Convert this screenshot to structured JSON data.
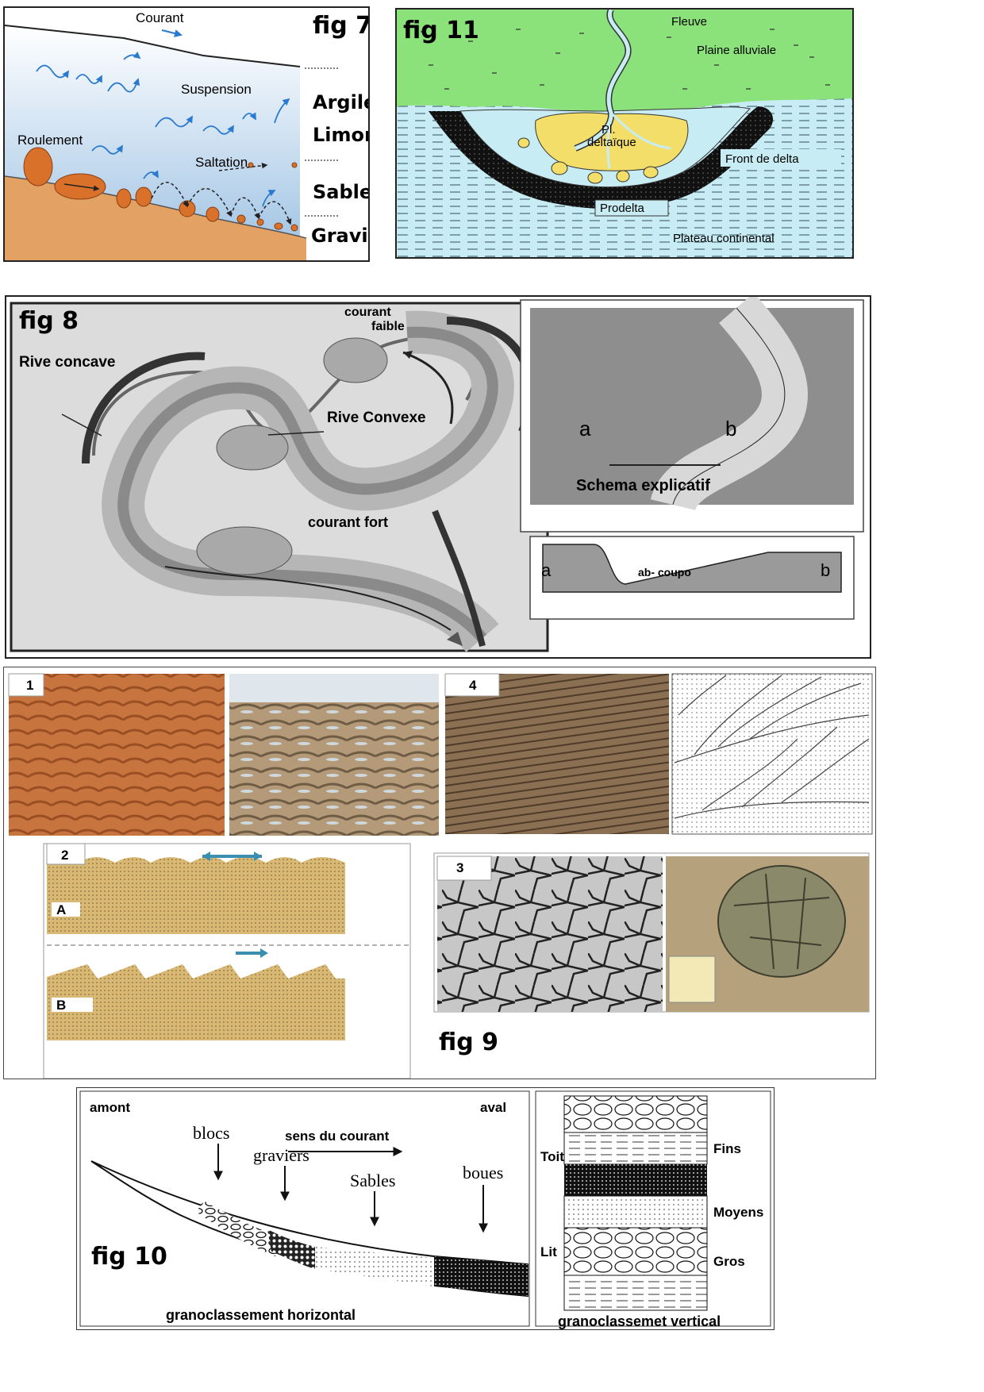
{
  "fig7": {
    "title": "fig 7",
    "courant": "Courant",
    "suspension": "Suspension",
    "roulement": "Roulement",
    "saltation": "Saltation",
    "argile": "Argile",
    "limon": "Limon",
    "sable": "Sable",
    "gravier": "Gravier"
  },
  "fig11": {
    "title": "fig 11",
    "fleuve": "Fleuve",
    "plaine": "Plaine alluviale",
    "pl": "Pl.",
    "deltaique": "deltaïque",
    "front": "Front de delta",
    "prodelta": "Prodelta",
    "plateau": "Plateau continental"
  },
  "fig8": {
    "title": "fig 8",
    "courant_faible_1": "courant",
    "courant_faible_2": "faible",
    "rive_concave": "Rive concave",
    "rive_convexe": "Rive Convexe",
    "courant_fort": "courant fort",
    "a": "a",
    "b": "b",
    "schema": "Schema explicatif",
    "coupe": "ab- coupo"
  },
  "fig9": {
    "title": "fig 9",
    "n1": "1",
    "n2": "2",
    "n3": "3",
    "n4": "4",
    "A": "A",
    "B": "B"
  },
  "fig10": {
    "title": "fig 10",
    "amont": "amont",
    "aval": "aval",
    "sens": "sens du courant",
    "blocs": "blocs",
    "graviers": "graviers",
    "sables": "Sables",
    "boues": "boues",
    "horizontal": "granoclassement horizontal",
    "toit": "Toit",
    "lit": "Lit",
    "fins": "Fins",
    "moyens": "Moyens",
    "gros": "Gros",
    "vertical": "granoclassemet vertical"
  },
  "colors": {
    "water": "#b9d4ea",
    "ground": "#e0a066",
    "plaine": "#8be27a",
    "sea": "#c8ecf3",
    "delta": "#f3de6a"
  }
}
